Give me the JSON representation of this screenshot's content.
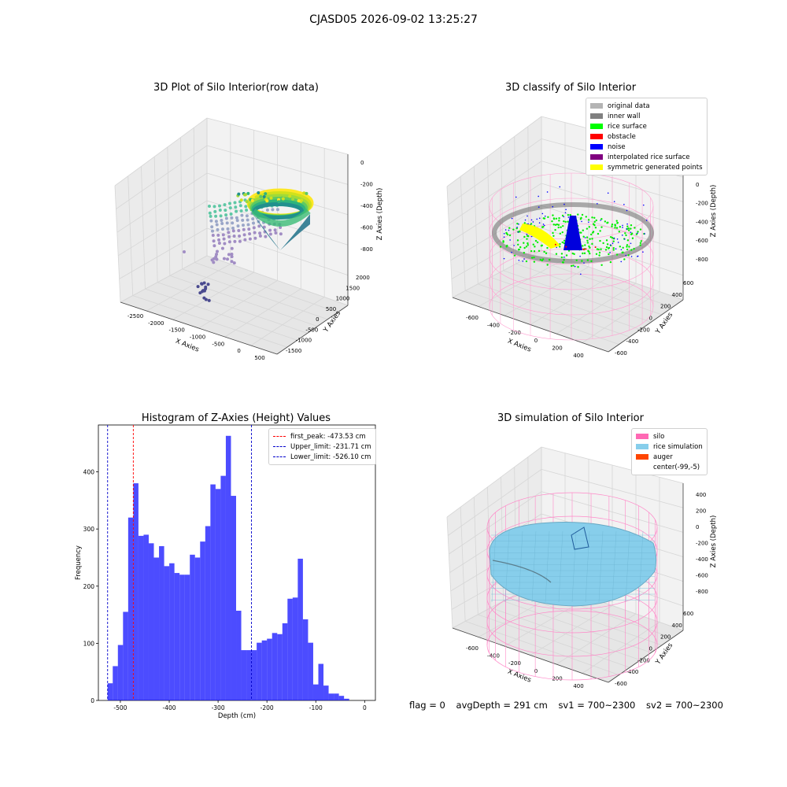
{
  "suptitle": "CJASD05 2026-09-02 13:25:27",
  "panels": {
    "raw": {
      "title": "3D Plot of Silo Interior(row data)",
      "x_label": "X Axies",
      "y_label": "Y Axies",
      "z_label": "Z Axies (Depth)",
      "x_ticks": [
        "-2500",
        "-2000",
        "-1500",
        "-1000",
        "-500",
        "0",
        "500"
      ],
      "y_ticks": [
        "-1500",
        "-1000",
        "-500",
        "0",
        "500",
        "1000",
        "1500",
        "2000"
      ],
      "z_ticks": [
        "0",
        "-200",
        "-400",
        "-600",
        "-800"
      ]
    },
    "classify": {
      "title": "3D classify of Silo Interior",
      "x_label": "X Axies",
      "y_label": "Y Axies",
      "z_label": "Z Axies (Depth)",
      "x_ticks": [
        "-600",
        "-400",
        "-200",
        "0",
        "200",
        "400"
      ],
      "y_ticks": [
        "-600",
        "-400",
        "-200",
        "0",
        "200",
        "400",
        "600"
      ],
      "z_ticks": [
        "200",
        "0",
        "-200",
        "-400",
        "-600",
        "-800"
      ],
      "legend": [
        {
          "label": "original data",
          "color": "#b4b4b4"
        },
        {
          "label": "inner wall",
          "color": "#808080"
        },
        {
          "label": "rice surface",
          "color": "#00ff00"
        },
        {
          "label": "obstacle",
          "color": "#ff0000"
        },
        {
          "label": "noise",
          "color": "#0000ff"
        },
        {
          "label": "interpolated rice surface",
          "color": "#800080"
        },
        {
          "label": "symmetric generated points",
          "color": "#ffff00"
        }
      ]
    },
    "simulation": {
      "title": "3D simulation of Silo Interior",
      "x_label": "X Axies",
      "y_label": "Y Axies",
      "z_label": "Z Axies (Depth)",
      "x_ticks": [
        "-600",
        "-400",
        "-200",
        "0",
        "200",
        "400"
      ],
      "y_ticks": [
        "-600",
        "-400",
        "-200",
        "0",
        "200",
        "400",
        "600"
      ],
      "z_ticks": [
        "400",
        "200",
        "0",
        "-200",
        "-400",
        "-600",
        "-800"
      ],
      "legend": [
        {
          "label": "silo",
          "color": "#ff69b4"
        },
        {
          "label": "rice simulation",
          "color": "#87ceeb"
        },
        {
          "label": "auger",
          "color": "#ff4500"
        },
        {
          "label": "center(-99,-5)",
          "color": ""
        }
      ]
    }
  },
  "chart_data": {
    "type": "bar",
    "title": "Histogram of Z-Axies (Height) Values",
    "xlabel": "Depth (cm)",
    "ylabel": "Frequency",
    "xlim": [
      -545,
      22
    ],
    "ylim": [
      0,
      482
    ],
    "x_ticks": [
      -500,
      -400,
      -300,
      -200,
      -100,
      0
    ],
    "y_ticks": [
      0,
      100,
      200,
      300,
      400
    ],
    "bin_start": -526.1,
    "bin_width": 10.52,
    "values": [
      30,
      60,
      97,
      155,
      320,
      380,
      288,
      290,
      275,
      250,
      270,
      235,
      240,
      223,
      220,
      220,
      255,
      250,
      278,
      305,
      378,
      370,
      393,
      463,
      358,
      157,
      88,
      88,
      88,
      101,
      105,
      108,
      118,
      116,
      135,
      178,
      180,
      248,
      142,
      101,
      28,
      64,
      26,
      12,
      12,
      8,
      3
    ],
    "color": "#0000ff",
    "vlines": [
      {
        "label": "first_peak: -473.53 cm",
        "x": -473.53,
        "color": "#ff0000"
      },
      {
        "label": "Upper_limit: -231.71 cm",
        "x": -231.71,
        "color": "#0000cc"
      },
      {
        "label": "Lower_limit: -526.10 cm",
        "x": -526.1,
        "color": "#0000cc"
      }
    ],
    "legend_position": "upper right"
  },
  "footer": {
    "flag": "flag = 0",
    "avg": "avgDepth = 291 cm",
    "sv1": "sv1 = 700~2300",
    "sv2": "sv2 = 700~2300"
  }
}
